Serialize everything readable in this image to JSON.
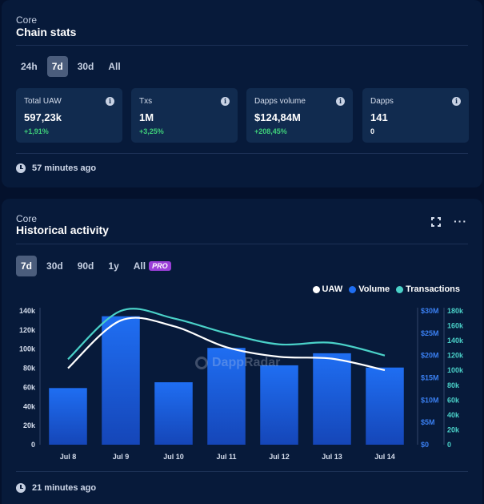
{
  "chain_stats": {
    "eyebrow": "Core",
    "title": "Chain stats",
    "tabs": [
      "24h",
      "7d",
      "30d",
      "All"
    ],
    "active_tab": "7d",
    "stats": [
      {
        "label": "Total UAW",
        "value": "597,23k",
        "change": "+1,91%"
      },
      {
        "label": "Txs",
        "value": "1M",
        "change": "+3,25%"
      },
      {
        "label": "Dapps volume",
        "value": "$124,84M",
        "change": "+208,45%"
      },
      {
        "label": "Dapps",
        "value": "141",
        "change": "0"
      }
    ],
    "updated": "57 minutes ago"
  },
  "historical": {
    "eyebrow": "Core",
    "title": "Historical activity",
    "tabs": [
      "7d",
      "30d",
      "90d",
      "1y",
      "All"
    ],
    "active_tab": "7d",
    "pro_badge": "PRO",
    "watermark": "DappRadar",
    "updated": "21 minutes ago"
  },
  "icons": {
    "info": "info-icon",
    "clock": "clock-icon",
    "expand": "expand-icon",
    "more": "more-icon"
  },
  "colors": {
    "uaw": "#ffffff",
    "volume": "#1f6ef2",
    "transactions": "#4ad1c8",
    "positive": "#3fd07a"
  },
  "chart_data": {
    "type": "bar",
    "categories": [
      "Jul 8",
      "Jul 9",
      "Jul 10",
      "Jul 11",
      "Jul 12",
      "Jul 13",
      "Jul 14"
    ],
    "series": [
      {
        "name": "UAW",
        "type": "line",
        "axis": "left",
        "values": [
          80000,
          130000,
          124000,
          102000,
          92000,
          90000,
          78000
        ]
      },
      {
        "name": "Volume",
        "type": "bar",
        "axis": "right-volume",
        "values": [
          12.7,
          28.8,
          14.0,
          21.7,
          17.8,
          20.5,
          17.3
        ]
      },
      {
        "name": "Transactions",
        "type": "line",
        "axis": "right-tx",
        "values": [
          115000,
          180000,
          170000,
          150000,
          135000,
          137000,
          120000
        ]
      }
    ],
    "axes": {
      "left": {
        "ticks": [
          "0",
          "20k",
          "40k",
          "60k",
          "80k",
          "100k",
          "120k",
          "140k"
        ],
        "range": [
          0,
          140000
        ]
      },
      "right_volume": {
        "ticks": [
          "$0",
          "$5M",
          "$10M",
          "$15M",
          "$20M",
          "$25M",
          "$30M"
        ],
        "range": [
          0,
          30
        ]
      },
      "right_tx": {
        "ticks": [
          "0",
          "20k",
          "40k",
          "60k",
          "80k",
          "100k",
          "120k",
          "140k",
          "160k",
          "180k"
        ],
        "range": [
          0,
          180000
        ]
      }
    },
    "grid": false,
    "legend": "top-right"
  }
}
